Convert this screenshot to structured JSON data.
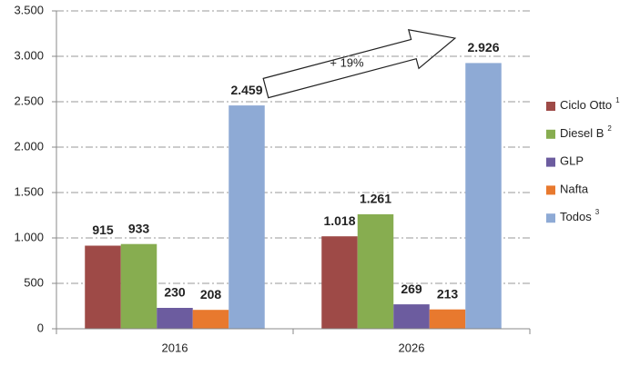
{
  "chart_data": {
    "type": "bar",
    "categories": [
      "2016",
      "2026"
    ],
    "series": [
      {
        "name": "Ciclo Otto",
        "footnote": "1",
        "color": "#9e4a47",
        "values": [
          915,
          1018
        ],
        "value_labels": [
          "915",
          "1.018"
        ]
      },
      {
        "name": "Diesel B",
        "footnote": "2",
        "color": "#87ad50",
        "values": [
          933,
          1261
        ],
        "value_labels": [
          "933",
          "1.261"
        ]
      },
      {
        "name": "GLP",
        "color": "#6c5c9f",
        "values": [
          230,
          269
        ],
        "value_labels": [
          "230",
          "269"
        ]
      },
      {
        "name": "Nafta",
        "color": "#e8792e",
        "values": [
          208,
          213
        ],
        "value_labels": [
          "208",
          "213"
        ]
      },
      {
        "name": "Todos",
        "footnote": "3",
        "color": "#8eaad5",
        "values": [
          2459,
          2926
        ],
        "value_labels": [
          "2.459",
          "2.926"
        ]
      }
    ],
    "ylim": [
      0,
      3500
    ],
    "yticks": [
      0,
      500,
      {
        "value": 1000,
        "label": "1.000"
      },
      {
        "value": 1500,
        "label": "1.500"
      },
      {
        "value": 2000,
        "label": "2.000"
      },
      {
        "value": 2500,
        "label": "2.500"
      },
      {
        "value": 3000,
        "label": "3.000"
      },
      {
        "value": 3500,
        "label": "3.500"
      }
    ],
    "grid": true,
    "legend": "right",
    "annotation": "+ 19%"
  }
}
